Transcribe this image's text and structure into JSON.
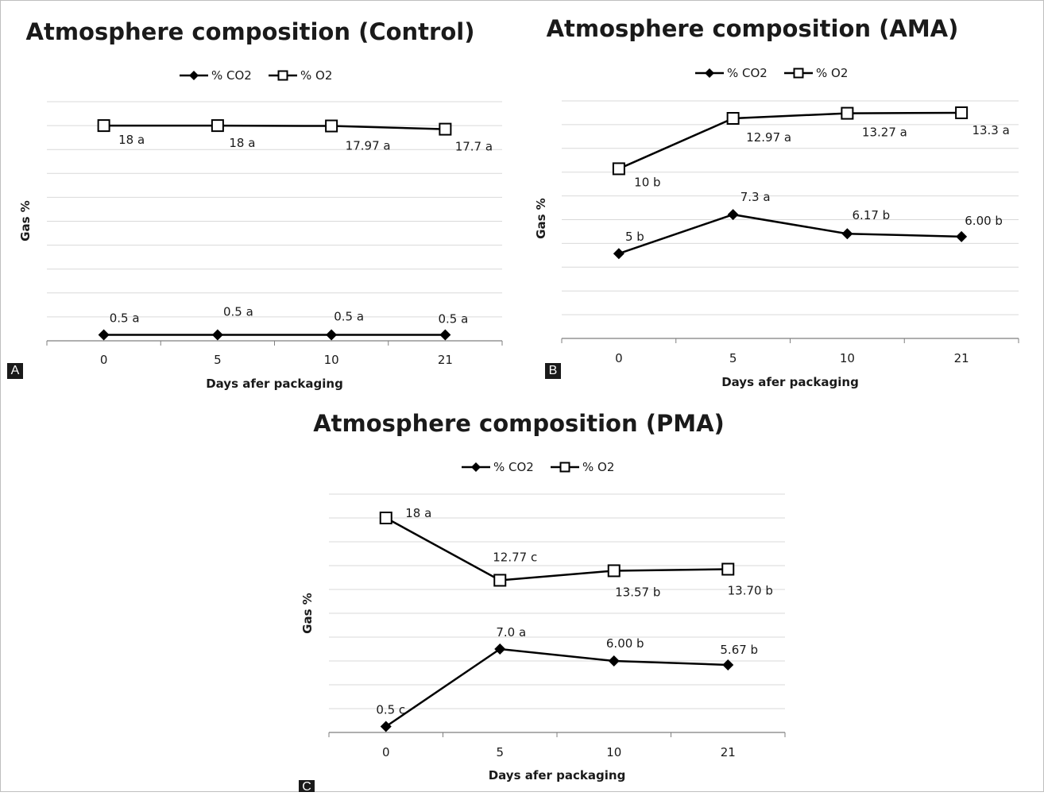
{
  "panel_labels": [
    "A",
    "B",
    "C"
  ],
  "colors": {
    "line": "#000000",
    "grid": "#d9d9d9",
    "axis": "#7f7f7f",
    "marker_open_fill": "#ffffff"
  },
  "chart_data": [
    {
      "type": "line",
      "panel": "A",
      "title": "Atmosphere composition (Control)",
      "xlabel": "Days afer packaging",
      "ylabel": "Gas %",
      "categories": [
        "0",
        "5",
        "10",
        "21"
      ],
      "ylim": [
        0,
        20
      ],
      "grid": true,
      "legend": "top-center",
      "series": [
        {
          "name": "% CO2",
          "marker": "filled-diamond",
          "values": [
            0.5,
            0.5,
            0.5,
            0.5
          ],
          "labels": [
            "0.5 a",
            "0.5 a",
            "0.5 a",
            "0.5 a"
          ]
        },
        {
          "name": "% O2",
          "marker": "open-square",
          "values": [
            18,
            18,
            17.97,
            17.7
          ],
          "labels": [
            "18 a",
            "18 a",
            "17.97 a",
            "17.7 a"
          ]
        }
      ]
    },
    {
      "type": "line",
      "panel": "B",
      "title": "Atmosphere composition (AMA)",
      "xlabel": "Days afer packaging",
      "ylabel": "Gas %",
      "categories": [
        "0",
        "5",
        "10",
        "21"
      ],
      "ylim": [
        0,
        14
      ],
      "grid": true,
      "legend": "top-center",
      "series": [
        {
          "name": "% CO2",
          "marker": "filled-diamond",
          "values": [
            5,
            7.3,
            6.17,
            6.0
          ],
          "labels": [
            "5 b",
            "7.3 a",
            "6.17 b",
            "6.00 b"
          ]
        },
        {
          "name": "% O2",
          "marker": "open-square",
          "values": [
            10,
            12.97,
            13.27,
            13.3
          ],
          "labels": [
            "10 b",
            "12.97 a",
            "13.27 a",
            "13.3 a"
          ]
        }
      ]
    },
    {
      "type": "line",
      "panel": "C",
      "title": "Atmosphere composition (PMA)",
      "xlabel": "Days afer packaging",
      "ylabel": "Gas %",
      "categories": [
        "0",
        "5",
        "10",
        "21"
      ],
      "ylim": [
        0,
        20
      ],
      "grid": true,
      "legend": "top-center",
      "series": [
        {
          "name": "% CO2",
          "marker": "filled-diamond",
          "values": [
            0.5,
            7.0,
            6.0,
            5.67
          ],
          "labels": [
            "0.5 c",
            "7.0 a",
            "6.00 b",
            "5.67 b"
          ]
        },
        {
          "name": "% O2",
          "marker": "open-square",
          "values": [
            18,
            12.77,
            13.57,
            13.7
          ],
          "labels": [
            "18 a",
            "12.77 c",
            "13.57 b",
            "13.70 b"
          ]
        }
      ]
    }
  ]
}
